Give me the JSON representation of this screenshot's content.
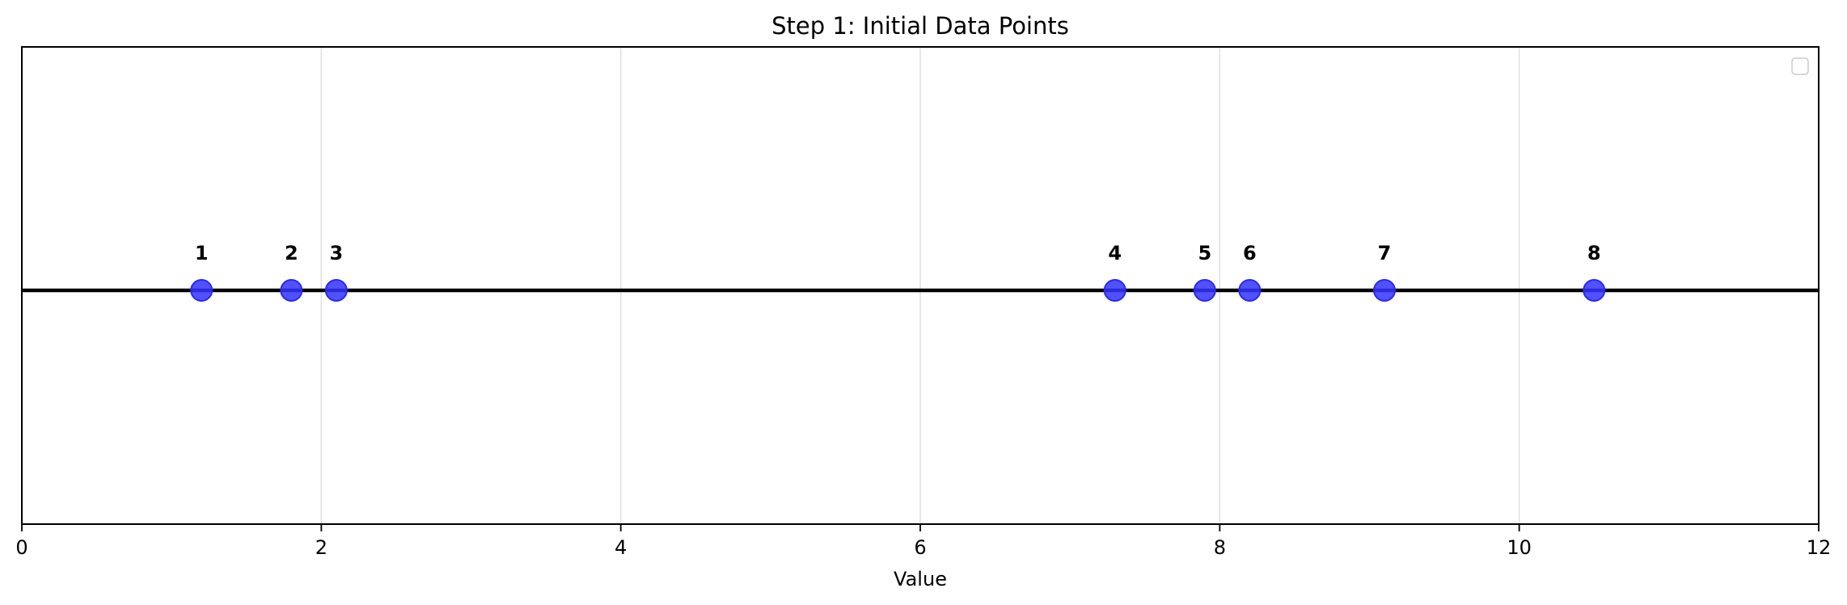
{
  "chart_data": {
    "type": "scatter",
    "title": "Step 1: Initial Data Points",
    "xlabel": "Value",
    "ylabel": "",
    "xlim": [
      0,
      12
    ],
    "xticks": [
      0,
      2,
      4,
      6,
      8,
      10,
      12
    ],
    "x_tick_labels": [
      "0",
      "2",
      "4",
      "6",
      "8",
      "10",
      "12"
    ],
    "grid": true,
    "legend": "top-right",
    "points": [
      {
        "label": "1",
        "x": 1.2,
        "y": 0
      },
      {
        "label": "2",
        "x": 1.8,
        "y": 0
      },
      {
        "label": "3",
        "x": 2.1,
        "y": 0
      },
      {
        "label": "4",
        "x": 7.3,
        "y": 0
      },
      {
        "label": "5",
        "x": 7.9,
        "y": 0
      },
      {
        "label": "6",
        "x": 8.2,
        "y": 0
      },
      {
        "label": "7",
        "x": 9.1,
        "y": 0
      },
      {
        "label": "8",
        "x": 10.5,
        "y": 0
      }
    ],
    "colors": {
      "point_fill": "#3333ff",
      "point_edge": "#2a2ae6",
      "baseline": "#000000",
      "grid": "#e0e0e0"
    }
  }
}
